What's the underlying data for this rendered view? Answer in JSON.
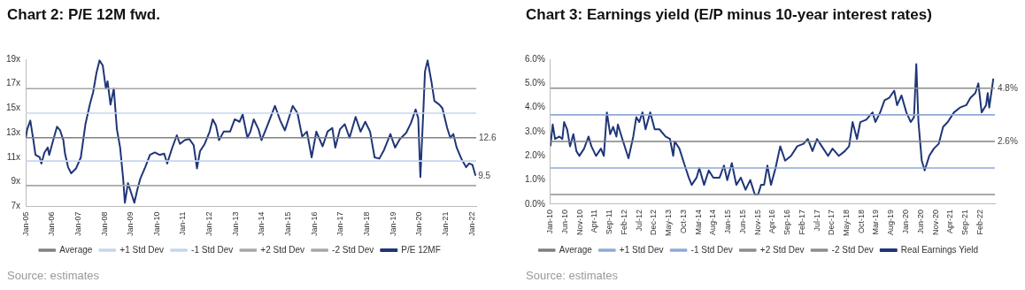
{
  "chart_data": [
    {
      "type": "line",
      "title": "Chart 2: P/E 12M fwd.",
      "legend": "bottom",
      "marker": "none",
      "xlim": [
        "2005-01-01",
        "2022-03-01"
      ],
      "xticks": [
        {
          "value": "2005-01-01",
          "label": "Jan-05"
        },
        {
          "value": "2006-01-01",
          "label": "Jan-06"
        },
        {
          "value": "2007-01-01",
          "label": "Jan-07"
        },
        {
          "value": "2008-01-01",
          "label": "Jan-08"
        },
        {
          "value": "2009-01-01",
          "label": "Jan-09"
        },
        {
          "value": "2010-01-01",
          "label": "Jan-10"
        },
        {
          "value": "2011-01-01",
          "label": "Jan-11"
        },
        {
          "value": "2012-01-01",
          "label": "Jan-12"
        },
        {
          "value": "2013-01-01",
          "label": "Jan-13"
        },
        {
          "value": "2014-01-01",
          "label": "Jan-14"
        },
        {
          "value": "2015-01-01",
          "label": "Jan-15"
        },
        {
          "value": "2016-01-01",
          "label": "Jan-16"
        },
        {
          "value": "2017-01-01",
          "label": "Jan-17"
        },
        {
          "value": "2018-01-01",
          "label": "Jan-18"
        },
        {
          "value": "2019-01-01",
          "label": "Jan-19"
        },
        {
          "value": "2020-01-01",
          "label": "Jan-20"
        },
        {
          "value": "2021-01-01",
          "label": "Jan-21"
        },
        {
          "value": "2022-01-01",
          "label": "Jan-22"
        }
      ],
      "ylim": [
        7,
        19
      ],
      "yticks": [
        {
          "value": 7,
          "label": "7x"
        },
        {
          "value": 9,
          "label": "9x"
        },
        {
          "value": 11,
          "label": "11x"
        },
        {
          "value": 13,
          "label": "13x"
        },
        {
          "value": 15,
          "label": "15x"
        },
        {
          "value": 17,
          "label": "17x"
        },
        {
          "value": 19,
          "label": "19x"
        }
      ],
      "series": [
        {
          "name": "Average",
          "color": "#808080",
          "x": [
            "2005-01-01",
            "2022-03-01"
          ],
          "values": [
            12.6,
            12.6
          ]
        },
        {
          "name": "+1 Std Dev",
          "color": "#c6d6ef",
          "x": [
            "2005-01-01",
            "2022-03-01"
          ],
          "values": [
            14.6,
            14.6
          ]
        },
        {
          "name": "-1 Std Dev",
          "color": "#c6d6ef",
          "x": [
            "2005-01-01",
            "2022-03-01"
          ],
          "values": [
            10.7,
            10.7
          ]
        },
        {
          "name": "+2 Std Dev",
          "color": "#a6a6a6",
          "x": [
            "2005-01-01",
            "2022-03-01"
          ],
          "values": [
            16.6,
            16.6
          ]
        },
        {
          "name": "-2 Std Dev",
          "color": "#a6a6a6",
          "x": [
            "2005-01-01",
            "2022-03-01"
          ],
          "values": [
            8.7,
            8.7
          ]
        },
        {
          "name": "P/E 12MF",
          "color": "#1f3677",
          "x": [
            "2005-01-01",
            "2005-01-21",
            "2005-03-05",
            "2005-04-17",
            "2005-05-16",
            "2005-07-14",
            "2005-08-06",
            "2005-09-18",
            "2005-11-03",
            "2005-11-23",
            "2006-01-27",
            "2006-03-12",
            "2006-04-24",
            "2006-06-08",
            "2006-07-01",
            "2006-08-13",
            "2006-09-25",
            "2006-12-02",
            "2007-02-06",
            "2007-04-11",
            "2007-06-15",
            "2007-07-27",
            "2007-09-12",
            "2007-10-24",
            "2007-12-08",
            "2008-01-21",
            "2008-02-13",
            "2008-03-25",
            "2008-05-10",
            "2008-06-22",
            "2008-08-06",
            "2008-09-18",
            "2008-10-11",
            "2008-11-23",
            "2009-01-07",
            "2009-02-20",
            "2009-04-04",
            "2009-05-16",
            "2009-07-21",
            "2009-09-25",
            "2009-12-02",
            "2010-02-06",
            "2010-04-11",
            "2010-05-23",
            "2010-07-27",
            "2010-10-04",
            "2010-11-16",
            "2011-01-21",
            "2011-03-25",
            "2011-05-26",
            "2011-07-11",
            "2011-08-23",
            "2011-10-27",
            "2012-01-04",
            "2012-02-16",
            "2012-04-01",
            "2012-05-13",
            "2012-07-17",
            "2012-10-14",
            "2012-12-18",
            "2013-02-23",
            "2013-04-07",
            "2013-06-12",
            "2013-07-24",
            "2013-09-08",
            "2013-11-13",
            "2013-12-25",
            "2014-03-18",
            "2014-07-01",
            "2014-09-12",
            "2014-11-16",
            "2015-03-05",
            "2015-05-10",
            "2015-07-14",
            "2015-09-18",
            "2015-11-23",
            "2016-01-27",
            "2016-04-24",
            "2016-07-01",
            "2016-09-05",
            "2016-10-17",
            "2016-12-22",
            "2017-02-26",
            "2017-05-03",
            "2017-07-27",
            "2017-10-04",
            "2017-12-08",
            "2018-02-13",
            "2018-04-17",
            "2018-06-22",
            "2018-08-26",
            "2018-11-23",
            "2019-01-27",
            "2019-04-04",
            "2019-07-01",
            "2019-09-05",
            "2019-11-09",
            "2019-12-15",
            "2020-01-14",
            "2020-02-26",
            "2020-03-18",
            "2020-04-24",
            "2020-06-15",
            "2020-07-27",
            "2020-10-04",
            "2020-11-16",
            "2021-01-21",
            "2021-03-05",
            "2021-04-17",
            "2021-06-02",
            "2021-08-06",
            "2021-10-11",
            "2021-11-23",
            "2022-01-07",
            "2022-02-20"
          ],
          "values": [
            12.6,
            13.3,
            14.0,
            12.4,
            11.2,
            11.0,
            10.5,
            11.4,
            11.8,
            11.2,
            12.6,
            13.5,
            13.2,
            12.4,
            11.3,
            10.2,
            9.7,
            10.1,
            11.0,
            13.7,
            15.4,
            16.3,
            17.9,
            18.9,
            18.5,
            16.6,
            17.2,
            15.3,
            16.6,
            13.3,
            11.8,
            9.2,
            7.3,
            8.9,
            8.1,
            7.3,
            8.4,
            9.3,
            10.2,
            11.2,
            11.4,
            11.2,
            11.3,
            10.5,
            11.7,
            12.8,
            12.1,
            12.4,
            12.5,
            12.0,
            10.1,
            11.5,
            12.1,
            13.1,
            14.1,
            13.6,
            12.4,
            13.1,
            13.1,
            14.1,
            13.9,
            14.5,
            12.6,
            13.1,
            14.1,
            13.3,
            12.4,
            13.6,
            15.2,
            14.0,
            13.2,
            15.2,
            14.6,
            12.7,
            13.1,
            11.0,
            13.1,
            11.9,
            13.1,
            13.4,
            11.8,
            13.3,
            13.7,
            12.6,
            14.3,
            13.1,
            13.9,
            13.1,
            11.0,
            10.9,
            11.6,
            12.9,
            11.8,
            12.5,
            13.0,
            13.8,
            14.9,
            14.2,
            9.4,
            15.0,
            18.0,
            18.9,
            17.2,
            15.6,
            15.3,
            15.0,
            13.4,
            12.6,
            12.9,
            11.8,
            10.9,
            10.2,
            10.5,
            10.4,
            9.5
          ]
        }
      ],
      "annotations": [
        {
          "text": "12.6",
          "x": "2022-03-01",
          "y": 12.6
        },
        {
          "text": "9.5",
          "x": "2022-02-20",
          "y": 9.5
        },
        "Source: estimates"
      ]
    },
    {
      "type": "line",
      "title": "Chart 3: Earnings yield (E/P minus 10-year interest rates)",
      "legend": "bottom",
      "marker": "none",
      "xlim": [
        "2010-01-01",
        "2022-07-01"
      ],
      "xticks": [
        {
          "value": "2010-01-01",
          "label": "Jan-10"
        },
        {
          "value": "2010-06-01",
          "label": "Jun-10"
        },
        {
          "value": "2010-11-01",
          "label": "Nov-10"
        },
        {
          "value": "2011-04-01",
          "label": "Apr-11"
        },
        {
          "value": "2011-09-01",
          "label": "Sep-11"
        },
        {
          "value": "2012-02-01",
          "label": "Feb-12"
        },
        {
          "value": "2012-07-01",
          "label": "Jul-12"
        },
        {
          "value": "2012-12-01",
          "label": "Dec-12"
        },
        {
          "value": "2013-05-01",
          "label": "May-13"
        },
        {
          "value": "2013-10-01",
          "label": "Oct-13"
        },
        {
          "value": "2014-03-01",
          "label": "Mar-14"
        },
        {
          "value": "2014-08-01",
          "label": "Aug-14"
        },
        {
          "value": "2015-01-01",
          "label": "Jan-15"
        },
        {
          "value": "2015-06-01",
          "label": "Jun-15"
        },
        {
          "value": "2015-11-01",
          "label": "Nov-15"
        },
        {
          "value": "2016-04-01",
          "label": "Apr-16"
        },
        {
          "value": "2016-09-01",
          "label": "Sep-16"
        },
        {
          "value": "2017-02-01",
          "label": "Feb-17"
        },
        {
          "value": "2017-07-01",
          "label": "Jul-17"
        },
        {
          "value": "2017-12-01",
          "label": "Dec-17"
        },
        {
          "value": "2018-05-01",
          "label": "May-18"
        },
        {
          "value": "2018-10-01",
          "label": "Oct-18"
        },
        {
          "value": "2019-03-01",
          "label": "Mar-19"
        },
        {
          "value": "2019-08-01",
          "label": "Aug-19"
        },
        {
          "value": "2020-01-01",
          "label": "Jan-20"
        },
        {
          "value": "2020-06-01",
          "label": "Jun-20"
        },
        {
          "value": "2020-11-01",
          "label": "Nov-20"
        },
        {
          "value": "2021-04-01",
          "label": "Apr-21"
        },
        {
          "value": "2021-09-01",
          "label": "Sep-21"
        },
        {
          "value": "2022-02-01",
          "label": "Feb-22"
        }
      ],
      "ylim": [
        0,
        6
      ],
      "yticks": [
        {
          "value": 0,
          "label": "0.0%"
        },
        {
          "value": 1,
          "label": "1.0%"
        },
        {
          "value": 2,
          "label": "2.0%"
        },
        {
          "value": 3,
          "label": "3.0%"
        },
        {
          "value": 4,
          "label": "4.0%"
        },
        {
          "value": 5,
          "label": "5.0%"
        },
        {
          "value": 6,
          "label": "6.0%"
        }
      ],
      "series": [
        {
          "name": "Average",
          "color": "#7f7f7f",
          "x": [
            "2010-01-01",
            "2022-07-01"
          ],
          "values": [
            2.6,
            2.6
          ]
        },
        {
          "name": "+1 Std Dev",
          "color": "#8fa9d6",
          "x": [
            "2010-01-01",
            "2022-07-01"
          ],
          "values": [
            3.7,
            3.7
          ]
        },
        {
          "name": "-1 Std Dev",
          "color": "#8fa9d6",
          "x": [
            "2010-01-01",
            "2022-07-01"
          ],
          "values": [
            1.5,
            1.5
          ]
        },
        {
          "name": "+2 Std Dev",
          "color": "#8c8c8c",
          "x": [
            "2010-01-01",
            "2022-07-01"
          ],
          "values": [
            4.8,
            4.8
          ]
        },
        {
          "name": "-2 Std Dev",
          "color": "#8c8c8c",
          "x": [
            "2010-01-01",
            "2022-07-01"
          ],
          "values": [
            0.4,
            0.4
          ]
        },
        {
          "name": "Real Earnings Yield",
          "color": "#1f3677",
          "x": [
            "2010-01-01",
            "2010-01-25",
            "2010-02-18",
            "2010-04-04",
            "2010-05-04",
            "2010-05-22",
            "2010-06-22",
            "2010-07-22",
            "2010-08-25",
            "2010-09-25",
            "2010-10-25",
            "2010-12-13",
            "2011-01-28",
            "2011-02-26",
            "2011-04-15",
            "2011-06-04",
            "2011-07-04",
            "2011-08-04",
            "2011-09-07",
            "2011-10-07",
            "2011-11-10",
            "2011-11-25",
            "2012-01-10",
            "2012-03-13",
            "2012-05-01",
            "2012-06-01",
            "2012-07-01",
            "2012-08-04",
            "2012-09-04",
            "2012-10-22",
            "2012-12-07",
            "2013-01-25",
            "2013-03-28",
            "2013-05-13",
            "2013-06-15",
            "2013-07-01",
            "2013-08-18",
            "2013-10-04",
            "2013-11-22",
            "2013-12-22",
            "2014-02-10",
            "2014-03-10",
            "2014-04-28",
            "2014-06-15",
            "2014-08-01",
            "2014-10-04",
            "2014-11-18",
            "2014-12-22",
            "2015-02-07",
            "2015-03-25",
            "2015-05-10",
            "2015-06-28",
            "2015-08-15",
            "2015-10-01",
            "2015-11-04",
            "2015-12-04",
            "2016-01-04",
            "2016-02-07",
            "2016-03-15",
            "2016-05-01",
            "2016-06-18",
            "2016-08-07",
            "2016-10-07",
            "2016-12-10",
            "2017-02-12",
            "2017-03-28",
            "2017-05-15",
            "2017-07-01",
            "2017-08-18",
            "2017-10-22",
            "2017-12-07",
            "2018-02-10",
            "2018-04-13",
            "2018-05-26",
            "2018-07-01",
            "2018-08-15",
            "2018-09-18",
            "2018-11-18",
            "2019-01-22",
            "2019-02-20",
            "2019-04-10",
            "2019-05-25",
            "2019-07-12",
            "2019-09-01",
            "2019-10-01",
            "2019-11-15",
            "2020-01-04",
            "2020-02-18",
            "2020-03-22",
            "2020-04-15",
            "2020-05-07",
            "2020-06-10",
            "2020-07-10",
            "2020-08-26",
            "2020-10-12",
            "2020-12-01",
            "2021-01-15",
            "2021-03-04",
            "2021-05-07",
            "2021-07-07",
            "2021-09-10",
            "2021-10-22",
            "2021-12-12",
            "2022-01-12",
            "2022-02-15",
            "2022-04-01",
            "2022-04-18",
            "2022-05-04",
            "2022-06-15"
          ],
          "values": [
            2.4,
            3.3,
            2.7,
            2.8,
            2.7,
            3.4,
            3.1,
            2.4,
            2.9,
            2.2,
            2.0,
            2.3,
            2.8,
            2.4,
            2.0,
            2.3,
            2.0,
            3.8,
            2.9,
            3.2,
            2.8,
            3.3,
            2.7,
            1.9,
            2.8,
            3.6,
            3.4,
            3.8,
            3.1,
            3.8,
            3.1,
            3.1,
            2.8,
            2.7,
            2.0,
            2.6,
            2.3,
            1.7,
            1.1,
            0.8,
            1.1,
            1.5,
            0.8,
            1.4,
            1.1,
            1.1,
            1.6,
            1.0,
            1.7,
            0.8,
            1.1,
            0.6,
            1.0,
            0.4,
            0.4,
            0.8,
            0.8,
            1.6,
            0.8,
            1.5,
            2.4,
            1.8,
            2.0,
            2.4,
            2.5,
            2.7,
            2.2,
            2.7,
            2.4,
            2.0,
            2.3,
            2.0,
            2.2,
            2.4,
            3.4,
            2.7,
            3.4,
            3.5,
            3.8,
            3.4,
            3.8,
            4.3,
            4.4,
            4.7,
            4.1,
            4.5,
            3.8,
            3.4,
            3.6,
            5.8,
            3.4,
            1.8,
            1.4,
            2.0,
            2.3,
            2.5,
            3.2,
            3.4,
            3.8,
            4.0,
            4.1,
            4.4,
            4.6,
            5.0,
            3.8,
            4.1,
            4.6,
            4.0,
            5.2
          ]
        }
      ],
      "annotations": [
        {
          "text": "4.8%",
          "x": "2022-07-01",
          "y": 4.8
        },
        {
          "text": "2.6%",
          "x": "2022-07-01",
          "y": 2.6
        },
        "Source: estimates"
      ]
    }
  ]
}
